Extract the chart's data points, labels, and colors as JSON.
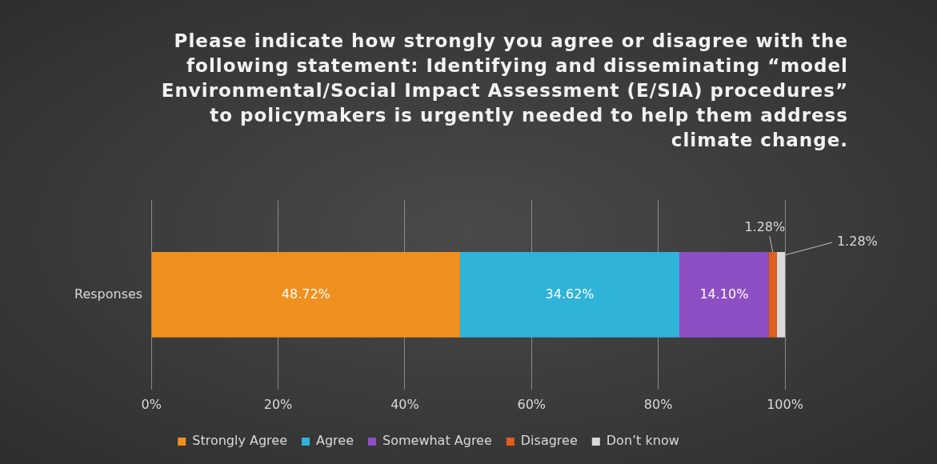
{
  "chart_data": {
    "type": "bar",
    "orientation": "horizontal",
    "stacked": true,
    "title": "Please indicate how strongly you agree or disagree with the following statement: Identifying and disseminating “model Environmental/Social Impact Assessment (E/SIA) procedures” to policymakers is urgently needed to help them address climate change.",
    "categories": [
      "Responses"
    ],
    "series": [
      {
        "name": "Strongly Agree",
        "color": "#f0901e",
        "values": [
          48.72
        ],
        "value_labels": [
          "48.72%"
        ]
      },
      {
        "name": "Agree",
        "color": "#2fb3d8",
        "values": [
          34.62
        ],
        "value_labels": [
          "34.62%"
        ]
      },
      {
        "name": "Somewhat Agree",
        "color": "#8e4fc4",
        "values": [
          14.1
        ],
        "value_labels": [
          "14.10%"
        ]
      },
      {
        "name": "Disagree",
        "color": "#e0601a",
        "values": [
          1.28
        ],
        "value_labels": [
          "1.28%"
        ]
      },
      {
        "name": "Don’t know",
        "color": "#d9d9d9",
        "values": [
          1.28
        ],
        "value_labels": [
          "1.28%"
        ]
      }
    ],
    "xlim": [
      0,
      100
    ],
    "xticks": [
      {
        "value": 0,
        "label": "0%"
      },
      {
        "value": 20,
        "label": "20%"
      },
      {
        "value": 40,
        "label": "40%"
      },
      {
        "value": 60,
        "label": "60%"
      },
      {
        "value": 80,
        "label": "80%"
      },
      {
        "value": 100,
        "label": "100%"
      }
    ],
    "grid": "x",
    "legend": "bottom"
  }
}
